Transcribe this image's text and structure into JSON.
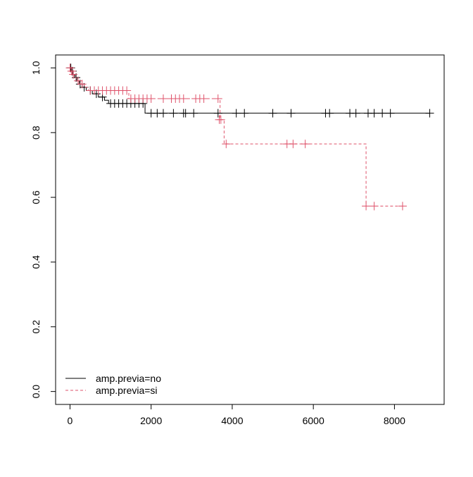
{
  "chart_data": {
    "type": "survival",
    "xlim": [
      -355,
      9225
    ],
    "ylim": [
      -0.04,
      1.04
    ],
    "xticks": [
      0,
      2000,
      4000,
      6000,
      8000
    ],
    "yticks": [
      {
        "value": 0,
        "label": "0.0"
      },
      0.2,
      0.4,
      0.6,
      0.8,
      {
        "value": 1,
        "label": "1.0"
      }
    ],
    "legend": "bottom-left",
    "series": [
      {
        "name": "amp.previa=no",
        "color": "#000000",
        "dash": false,
        "x": [
          0,
          30,
          80,
          120,
          170,
          230,
          300,
          400,
          550,
          700,
          850,
          950,
          1850,
          8870
        ],
        "values": [
          1,
          0.99,
          0.98,
          0.97,
          0.96,
          0.95,
          0.94,
          0.93,
          0.92,
          0.91,
          0.9,
          0.89,
          0.86,
          0.86
        ],
        "censor_x": [
          20,
          60,
          150,
          250,
          350,
          500,
          650,
          800,
          1000,
          1100,
          1200,
          1300,
          1400,
          1500,
          1600,
          1700,
          1800,
          2000,
          2150,
          2300,
          2550,
          2800,
          2850,
          3050,
          3650,
          4100,
          4300,
          5000,
          5450,
          6300,
          6400,
          6900,
          7050,
          7350,
          7500,
          7700,
          7900,
          8870
        ],
        "censor_values": [
          1,
          0.99,
          0.97,
          0.95,
          0.94,
          0.93,
          0.92,
          0.91,
          0.89,
          0.89,
          0.89,
          0.89,
          0.89,
          0.89,
          0.89,
          0.89,
          0.89,
          0.86,
          0.86,
          0.86,
          0.86,
          0.86,
          0.86,
          0.86,
          0.86,
          0.86,
          0.86,
          0.86,
          0.86,
          0.86,
          0.86,
          0.86,
          0.86,
          0.86,
          0.86,
          0.86,
          0.86,
          0.86
        ]
      },
      {
        "name": "amp.previa=si",
        "color": "#df536b",
        "dash": true,
        "x": [
          0,
          50,
          100,
          150,
          250,
          350,
          450,
          1450,
          3700,
          3800,
          7300,
          8200
        ],
        "values": [
          1,
          0.98,
          0.97,
          0.96,
          0.95,
          0.94,
          0.93,
          0.905,
          0.84,
          0.765,
          0.573,
          0.573
        ],
        "censor_x": [
          0,
          40,
          80,
          200,
          300,
          500,
          600,
          700,
          800,
          900,
          1000,
          1100,
          1200,
          1300,
          1400,
          1500,
          1600,
          1700,
          1800,
          1900,
          2000,
          2300,
          2500,
          2600,
          2700,
          2800,
          3100,
          3200,
          3300,
          3650,
          3680,
          3720,
          3850,
          5350,
          5500,
          5800,
          7300,
          7500,
          8200
        ],
        "censor_values": [
          1,
          0.99,
          0.98,
          0.96,
          0.95,
          0.93,
          0.93,
          0.93,
          0.93,
          0.93,
          0.93,
          0.93,
          0.93,
          0.93,
          0.93,
          0.905,
          0.905,
          0.905,
          0.905,
          0.905,
          0.905,
          0.905,
          0.905,
          0.905,
          0.905,
          0.905,
          0.905,
          0.905,
          0.905,
          0.905,
          0.84,
          0.84,
          0.765,
          0.765,
          0.765,
          0.765,
          0.573,
          0.573,
          0.573
        ]
      }
    ]
  }
}
